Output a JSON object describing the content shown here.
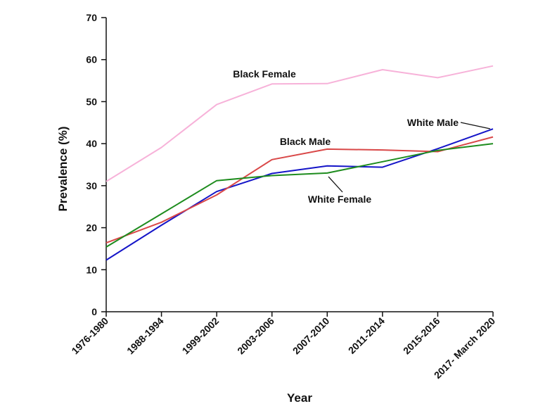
{
  "chart_data": {
    "type": "line",
    "title": "",
    "xlabel": "Year",
    "ylabel": "Prevalence (%)",
    "ylim": [
      0,
      70
    ],
    "yticks": [
      0,
      10,
      20,
      30,
      40,
      50,
      60,
      70
    ],
    "grid": false,
    "legend": "none",
    "categories": [
      "1976-1980",
      "1988-1994",
      "1999-2002",
      "2003-2006",
      "2007-2010",
      "2011-2014",
      "2015-2016",
      "2017- March 2020"
    ],
    "series": [
      {
        "name": "Black Female",
        "color": "#f7b2d9",
        "values": [
          31.0,
          39.1,
          49.3,
          54.2,
          54.3,
          57.6,
          55.7,
          58.5
        ]
      },
      {
        "name": "White Male",
        "color": "#1515c8",
        "values": [
          12.3,
          20.6,
          28.6,
          32.9,
          34.7,
          34.4,
          38.8,
          43.5
        ]
      },
      {
        "name": "Black Male",
        "color": "#d94848",
        "values": [
          16.4,
          21.3,
          27.8,
          36.2,
          38.7,
          38.5,
          38.1,
          41.6
        ]
      },
      {
        "name": "White Female",
        "color": "#1e8c1e",
        "values": [
          15.4,
          23.3,
          31.2,
          32.4,
          33.0,
          35.7,
          38.4,
          40.0
        ]
      }
    ]
  }
}
